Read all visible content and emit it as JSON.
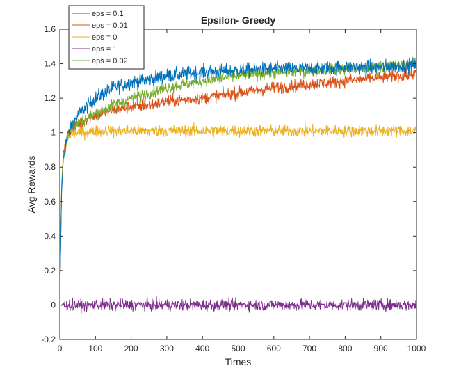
{
  "chart_data": {
    "type": "line",
    "title": "Epsilon- Greedy",
    "xlabel": "Times",
    "ylabel": "Avg Rewards",
    "xlim": [
      0,
      1000
    ],
    "ylim": [
      -0.2,
      1.6
    ],
    "xticks": [
      0,
      100,
      200,
      300,
      400,
      500,
      600,
      700,
      800,
      900,
      1000
    ],
    "yticks": [
      -0.2,
      0,
      0.2,
      0.4,
      0.6,
      0.8,
      1,
      1.2,
      1.4,
      1.6
    ],
    "xtick_labels": [
      "0",
      "100",
      "200",
      "300",
      "400",
      "500",
      "600",
      "700",
      "800",
      "900",
      "1000"
    ],
    "ytick_labels": [
      "-0.2",
      "0",
      "0.2",
      "0.4",
      "0.6",
      "0.8",
      "1",
      "1.2",
      "1.4",
      "1.6"
    ],
    "grid": false,
    "legend_position": "top-left",
    "series": [
      {
        "name": "eps = 0.1",
        "color": "#0072BD",
        "noise": 0.035,
        "x": [
          0,
          5,
          10,
          20,
          30,
          50,
          75,
          100,
          150,
          200,
          250,
          300,
          400,
          500,
          600,
          700,
          800,
          900,
          1000
        ],
        "values": [
          0.05,
          0.65,
          0.85,
          0.97,
          1.03,
          1.1,
          1.15,
          1.2,
          1.26,
          1.29,
          1.31,
          1.33,
          1.35,
          1.36,
          1.37,
          1.37,
          1.38,
          1.38,
          1.39
        ]
      },
      {
        "name": "eps = 0.01",
        "color": "#D95319",
        "noise": 0.03,
        "x": [
          0,
          5,
          10,
          20,
          30,
          50,
          75,
          100,
          150,
          200,
          250,
          300,
          400,
          500,
          600,
          700,
          800,
          900,
          1000
        ],
        "values": [
          0.05,
          0.68,
          0.87,
          0.98,
          1.02,
          1.05,
          1.08,
          1.1,
          1.13,
          1.15,
          1.16,
          1.18,
          1.2,
          1.23,
          1.26,
          1.28,
          1.3,
          1.32,
          1.34
        ]
      },
      {
        "name": "eps = 0",
        "color": "#EDB120",
        "noise": 0.03,
        "x": [
          0,
          5,
          10,
          20,
          30,
          50,
          100,
          200,
          400,
          600,
          800,
          1000
        ],
        "values": [
          0.05,
          0.7,
          0.88,
          0.96,
          0.99,
          1.0,
          1.01,
          1.01,
          1.01,
          1.01,
          1.01,
          1.01
        ]
      },
      {
        "name": "eps = 1",
        "color": "#7E2F8E",
        "noise": 0.028,
        "x": [
          0,
          1000
        ],
        "values": [
          0.0,
          0.0
        ]
      },
      {
        "name": "eps = 0.02",
        "color": "#77AC30",
        "noise": 0.03,
        "x": [
          0,
          5,
          10,
          20,
          30,
          50,
          75,
          100,
          150,
          200,
          250,
          300,
          400,
          500,
          600,
          700,
          800,
          900,
          1000
        ],
        "values": [
          0.05,
          0.67,
          0.86,
          0.97,
          1.02,
          1.05,
          1.08,
          1.11,
          1.16,
          1.2,
          1.23,
          1.26,
          1.3,
          1.33,
          1.35,
          1.36,
          1.37,
          1.38,
          1.4
        ]
      }
    ]
  }
}
